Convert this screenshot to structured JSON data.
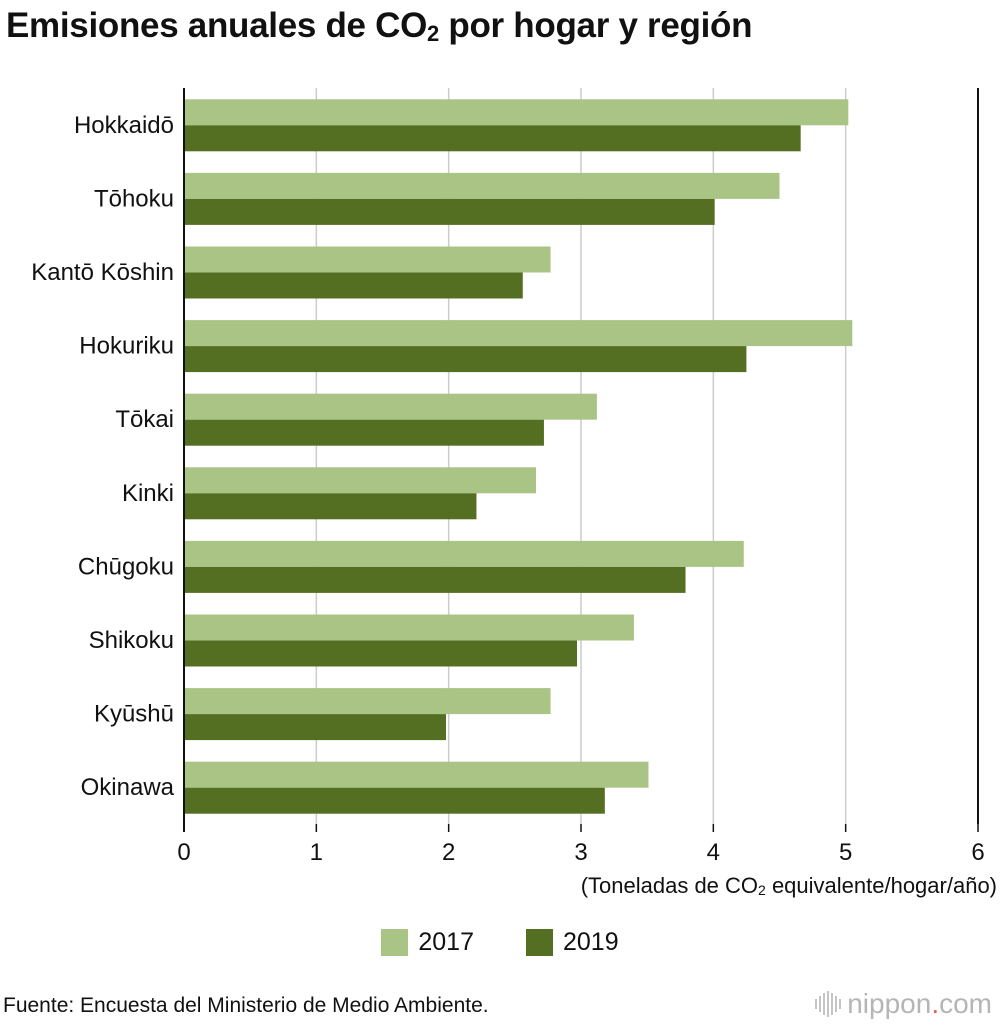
{
  "title": {
    "main": "Emisiones anuales de CO",
    "sub": "2",
    "rest": " por hogar y región"
  },
  "unit_label": {
    "before": "(Toneladas de CO",
    "sub": "2",
    "after": " equivalente/hogar/año)"
  },
  "source": "Fuente: Encuesta del Ministerio de Medio Ambiente.",
  "brand": {
    "name": "nippon",
    "dot": ".",
    "suffix": "com"
  },
  "colors": {
    "y2017": "#a9c484",
    "y2019": "#546f22",
    "grid": "#cccccc",
    "axis": "#111111"
  },
  "chart_data": {
    "type": "bar",
    "orientation": "horizontal",
    "title": "Emisiones anuales de CO₂ por hogar y región",
    "xlabel": "(Toneladas de CO₂ equivalente/hogar/año)",
    "ylabel": "",
    "xlim": [
      0,
      6
    ],
    "xticks": [
      0,
      1,
      2,
      3,
      4,
      5,
      6
    ],
    "grid": true,
    "legend": "bottom-center",
    "categories": [
      "Hokkaidō",
      "Tōhoku",
      "Kantō Kōshin",
      "Hokuriku",
      "Tōkai",
      "Kinki",
      "Chūgoku",
      "Shikoku",
      "Kyūshū",
      "Okinawa"
    ],
    "series": [
      {
        "name": "2017",
        "values": [
          5.02,
          4.5,
          2.77,
          5.05,
          3.12,
          2.66,
          4.23,
          3.4,
          2.77,
          3.51
        ]
      },
      {
        "name": "2019",
        "values": [
          4.66,
          4.01,
          2.56,
          4.25,
          2.72,
          2.21,
          3.79,
          2.97,
          1.98,
          3.18
        ]
      }
    ]
  }
}
